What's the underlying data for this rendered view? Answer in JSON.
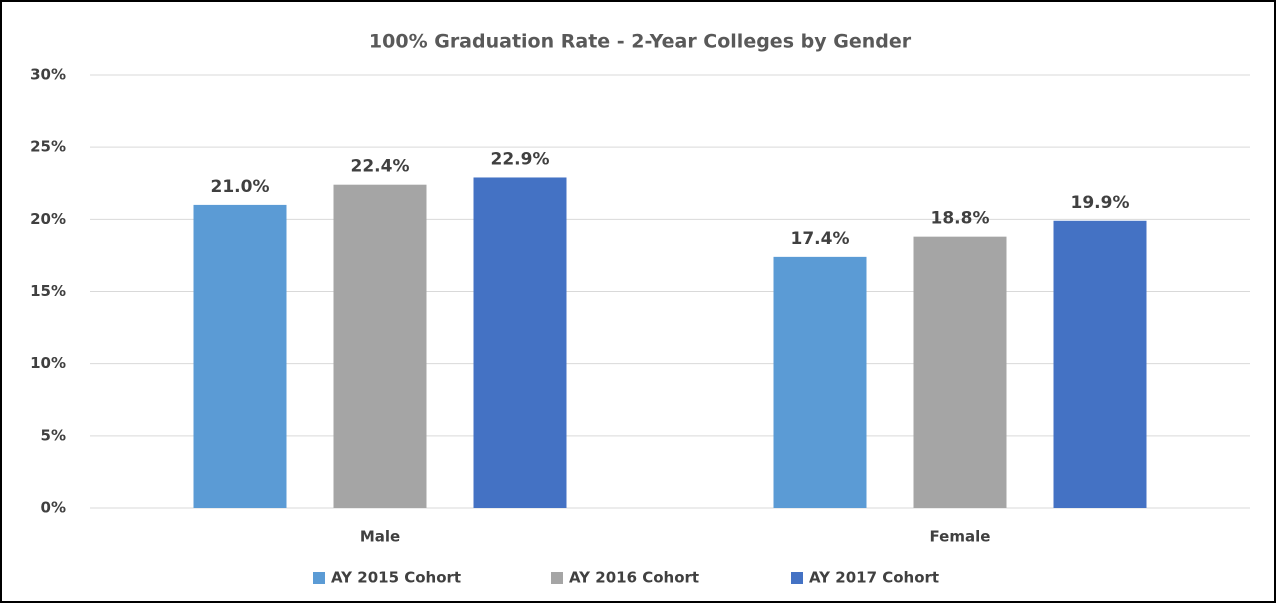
{
  "chart_data": {
    "type": "bar",
    "title": "100% Graduation Rate - 2-Year Colleges by Gender",
    "categories": [
      "Male",
      "Female"
    ],
    "series": [
      {
        "name": "AY 2015 Cohort",
        "color": "#5b9bd5",
        "values": [
          21.0,
          17.4
        ],
        "value_labels": [
          "21.0%",
          "17.4%"
        ]
      },
      {
        "name": "AY 2016 Cohort",
        "color": "#a5a5a5",
        "values": [
          22.4,
          18.8
        ],
        "value_labels": [
          "22.4%",
          "18.8%"
        ]
      },
      {
        "name": "AY 2017 Cohort",
        "color": "#4472c4",
        "values": [
          22.9,
          19.9
        ],
        "value_labels": [
          "22.9%",
          "19.9%"
        ]
      }
    ],
    "ylim": [
      0,
      30
    ],
    "yticks": [
      {
        "value": 0,
        "label": "0%"
      },
      {
        "value": 5,
        "label": "5%"
      },
      {
        "value": 10,
        "label": "10%"
      },
      {
        "value": 15,
        "label": "15%"
      },
      {
        "value": 20,
        "label": "20%"
      },
      {
        "value": 25,
        "label": "25%"
      },
      {
        "value": 30,
        "label": "30%"
      }
    ],
    "grid": true,
    "legend": "bottom"
  }
}
